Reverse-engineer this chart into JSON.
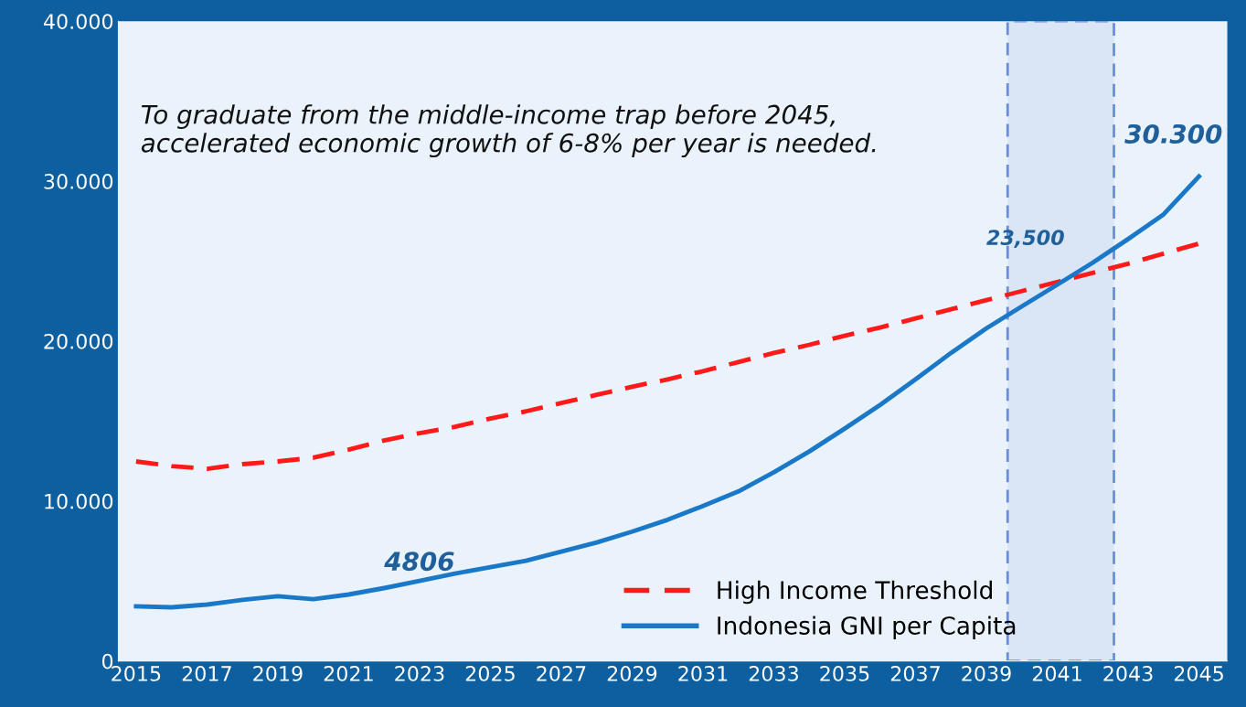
{
  "chart_data": {
    "type": "line",
    "x": [
      2015,
      2016,
      2017,
      2018,
      2019,
      2020,
      2021,
      2022,
      2023,
      2024,
      2025,
      2026,
      2027,
      2028,
      2029,
      2030,
      2031,
      2032,
      2033,
      2034,
      2035,
      2036,
      2037,
      2038,
      2039,
      2040,
      2041,
      2042,
      2043,
      2044,
      2045
    ],
    "series": [
      {
        "name": "High Income Threshold",
        "color": "#ff1a1a",
        "line_style": "dashed",
        "values": [
          12480,
          12190,
          12020,
          12310,
          12480,
          12710,
          13220,
          13790,
          14250,
          14640,
          15160,
          15610,
          16130,
          16640,
          17150,
          17610,
          18120,
          18690,
          19260,
          19770,
          20340,
          20850,
          21420,
          21990,
          22560,
          23130,
          23700,
          24270,
          24840,
          25470,
          26100
        ]
      },
      {
        "name": "Indonesia GNI per Capita",
        "color": "#1a78c8",
        "line_style": "solid",
        "values": [
          3420,
          3360,
          3530,
          3820,
          4050,
          3870,
          4160,
          4560,
          5010,
          5470,
          5870,
          6270,
          6840,
          7410,
          8090,
          8830,
          9690,
          10600,
          11800,
          13100,
          14530,
          16010,
          17610,
          19260,
          20800,
          22170,
          23530,
          24900,
          26380,
          27920,
          30300
        ]
      }
    ],
    "xlim": [
      2014.5,
      2045.8
    ],
    "xticks": [
      2015,
      2017,
      2019,
      2021,
      2023,
      2025,
      2027,
      2029,
      2031,
      2033,
      2035,
      2037,
      2039,
      2041,
      2043,
      2045
    ],
    "ylim": [
      0,
      40000
    ],
    "yticks": [
      {
        "value": 0,
        "label": "0"
      },
      {
        "value": 10000,
        "label": "10.000"
      },
      {
        "value": 20000,
        "label": "20.000"
      },
      {
        "value": 30000,
        "label": "30.000"
      },
      {
        "value": 40000,
        "label": "40.000"
      }
    ],
    "bands": [
      {
        "axis": "x",
        "from": 2039.6,
        "to": 2042.6,
        "color": "#6a8fd8"
      }
    ],
    "annotations": [
      "To graduate from the middle-income trap before 2045,\naccelerated economic growth of 6-8% per year is needed.",
      {
        "text": "4806",
        "x": 2023,
        "y": 5010
      },
      {
        "text": "23,500",
        "x": 2041,
        "y": 23530
      },
      {
        "text": "30.300",
        "x": 2045,
        "y": 30300
      }
    ],
    "grid": false,
    "legend": "bottom right"
  }
}
